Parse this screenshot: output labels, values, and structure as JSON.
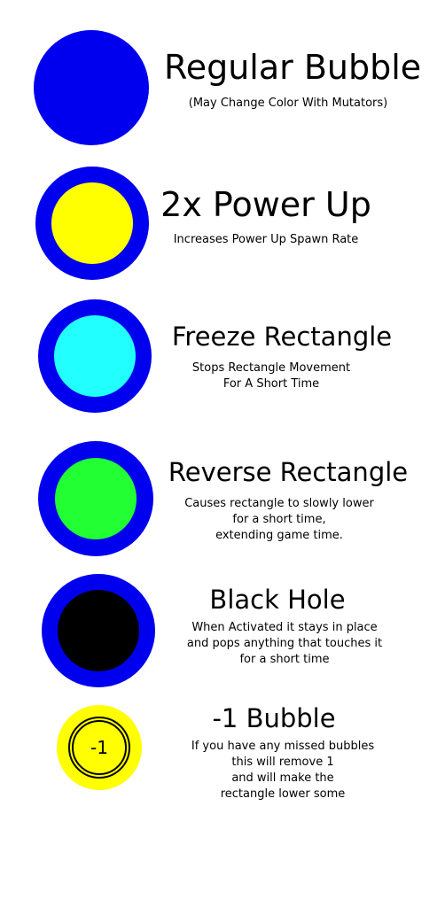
{
  "colors": {
    "bubble_blue": "#0000ee",
    "power_yellow": "#ffff00",
    "freeze_cyan": "#22ffff",
    "reverse_green": "#22ff33",
    "black_hole": "#000000"
  },
  "items": [
    {
      "title": "Regular Bubble",
      "desc": [
        "(May Change Color With Mutators)"
      ],
      "icon": "blue-bubble-icon"
    },
    {
      "title": "2x Power Up",
      "desc": [
        "Increases Power Up Spawn Rate"
      ],
      "icon": "yellow-powerup-bubble-icon"
    },
    {
      "title": "Freeze Rectangle",
      "desc": [
        "Stops Rectangle Movement",
        "For A Short Time"
      ],
      "icon": "cyan-freeze-bubble-icon"
    },
    {
      "title": "Reverse Rectangle",
      "desc": [
        "Causes rectangle to slowly lower",
        "for a short time,",
        "extending game time."
      ],
      "icon": "green-reverse-bubble-icon"
    },
    {
      "title": "Black Hole",
      "desc": [
        "When Activated it stays in place",
        "and pops anything that touches it",
        "for a short time"
      ],
      "icon": "black-hole-bubble-icon"
    },
    {
      "title": "-1 Bubble",
      "desc": [
        "If you have any missed bubbles",
        "this will remove 1",
        "and will make the",
        "rectangle lower some"
      ],
      "icon": "minus-one-bubble-icon",
      "label": "-1"
    }
  ]
}
